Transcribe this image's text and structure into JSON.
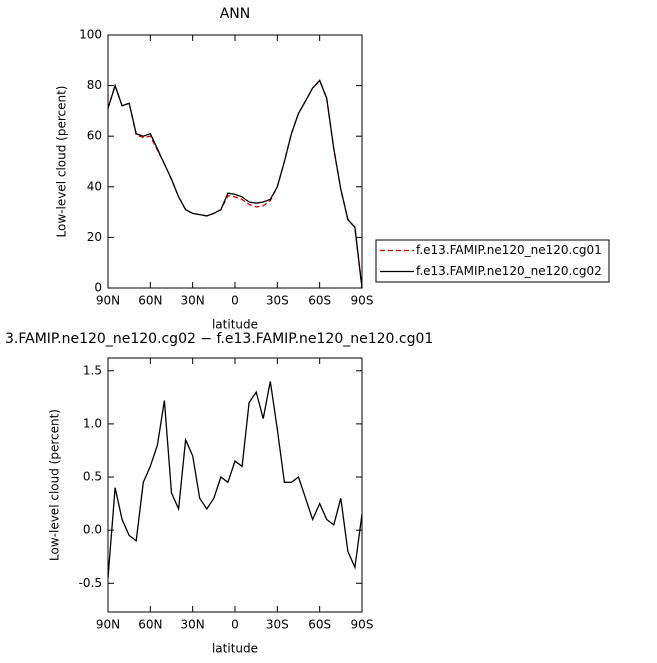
{
  "chart_data": [
    {
      "type": "line",
      "title": "ANN",
      "xlabel": "latitude",
      "ylabel": "Low-level cloud (percent)",
      "x": [
        90,
        85,
        80,
        75,
        70,
        65,
        60,
        55,
        50,
        45,
        40,
        35,
        30,
        25,
        20,
        15,
        10,
        5,
        0,
        -5,
        -10,
        -15,
        -20,
        -25,
        -30,
        -35,
        -40,
        -45,
        -50,
        -55,
        -60,
        -65,
        -70,
        -75,
        -80,
        -85,
        -90
      ],
      "series": [
        {
          "name": "f.e13.FAMIP.ne120_ne120.cg01",
          "color": "#d40000",
          "dashed": true,
          "values": [
            71,
            80,
            72,
            73,
            60.5,
            59.5,
            60,
            54.5,
            49,
            43,
            36,
            31,
            29.5,
            29,
            28.5,
            29.5,
            31,
            36.5,
            36,
            35,
            33,
            32,
            32.5,
            34.5,
            40,
            50,
            61,
            69,
            74,
            79,
            82,
            75,
            55,
            39,
            27,
            24,
            0
          ]
        },
        {
          "name": "f.e13.FAMIP.ne120_ne120.cg02",
          "color": "#000000",
          "dashed": false,
          "values": [
            71,
            80,
            72,
            73,
            61,
            60,
            61,
            55,
            49,
            43,
            36,
            31,
            29.5,
            29,
            28.5,
            29.5,
            31,
            37.5,
            37,
            36,
            34,
            33.5,
            34,
            35,
            40,
            50,
            61,
            69,
            74,
            79,
            82,
            75,
            55,
            39,
            27,
            24,
            0
          ]
        }
      ],
      "xlim": [
        90,
        -90
      ],
      "xticks": [
        {
          "value": 90,
          "label": "90N"
        },
        {
          "value": 60,
          "label": "60N"
        },
        {
          "value": 30,
          "label": "30N"
        },
        0,
        {
          "value": -30,
          "label": "30S"
        },
        {
          "value": -60,
          "label": "60S"
        },
        {
          "value": -90,
          "label": "90S"
        }
      ],
      "ylim": [
        0,
        100
      ],
      "yticks": [
        0,
        20,
        40,
        60,
        80,
        100
      ],
      "legend": "right"
    },
    {
      "type": "line",
      "title": "3.FAMIP.ne120_ne120.cg02 − f.e13.FAMIP.ne120_ne120.cg01",
      "xlabel": "latitude",
      "ylabel": "Low-level cloud (percent)",
      "x": [
        90,
        85,
        80,
        75,
        70,
        65,
        60,
        55,
        50,
        45,
        40,
        35,
        30,
        25,
        20,
        15,
        10,
        5,
        0,
        -5,
        -10,
        -15,
        -20,
        -25,
        -30,
        -35,
        -40,
        -45,
        -50,
        -55,
        -60,
        -65,
        -70,
        -75,
        -80,
        -85,
        -90
      ],
      "series": [
        {
          "color": "#000000",
          "dashed": false,
          "values": [
            -0.45,
            0.4,
            0.1,
            -0.05,
            -0.1,
            0.45,
            0.6,
            0.8,
            1.22,
            0.35,
            0.2,
            0.85,
            0.7,
            0.3,
            0.2,
            0.3,
            0.5,
            0.45,
            0.65,
            0.6,
            1.2,
            1.3,
            1.05,
            1.4,
            0.95,
            0.45,
            0.45,
            0.5,
            0.3,
            0.1,
            0.25,
            0.1,
            0.05,
            0.3,
            -0.2,
            -0.35,
            0.15
          ]
        }
      ],
      "xlim": [
        90,
        -90
      ],
      "xticks": [
        {
          "value": 90,
          "label": "90N"
        },
        {
          "value": 60,
          "label": "60N"
        },
        {
          "value": 30,
          "label": "30N"
        },
        0,
        {
          "value": -30,
          "label": "30S"
        },
        {
          "value": -60,
          "label": "60S"
        },
        {
          "value": -90,
          "label": "90S"
        }
      ],
      "ylim": [
        -0.77,
        1.62
      ],
      "yticks": [
        -0.5,
        {
          "value": 0,
          "label": "0.0"
        },
        0.5,
        {
          "value": 1,
          "label": "1.0"
        },
        1.5
      ]
    }
  ]
}
